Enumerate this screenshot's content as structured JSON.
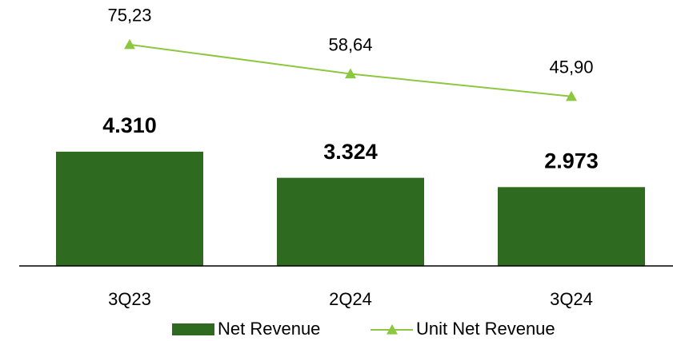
{
  "chart_data": {
    "type": "bar-line",
    "categories": [
      "3Q23",
      "2Q24",
      "3Q24"
    ],
    "series": [
      {
        "name": "Net Revenue",
        "type": "bar",
        "color": "#2e6b20",
        "values": [
          4310,
          3324,
          2973
        ],
        "value_labels": [
          "4.310",
          "3.324",
          "2.973"
        ]
      },
      {
        "name": "Unit Net Revenue",
        "type": "line",
        "axis": "y2",
        "color": "#8cc83f",
        "values": [
          75.23,
          58.64,
          45.9
        ],
        "value_labels": [
          "75,23",
          "58,64",
          "45,90"
        ]
      }
    ],
    "ylim": [
      0,
      10000
    ],
    "y2lim": [
      -50,
      100
    ],
    "legend": "bottom"
  }
}
